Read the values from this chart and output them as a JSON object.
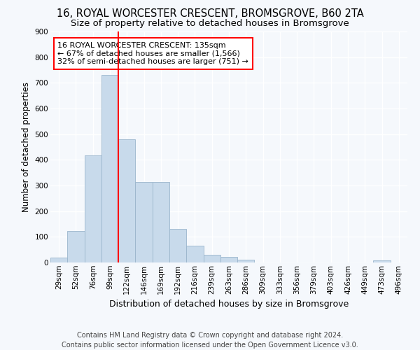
{
  "title_line1": "16, ROYAL WORCESTER CRESCENT, BROMSGROVE, B60 2TA",
  "title_line2": "Size of property relative to detached houses in Bromsgrove",
  "xlabel": "Distribution of detached houses by size in Bromsgrove",
  "ylabel": "Number of detached properties",
  "categories": [
    "29sqm",
    "52sqm",
    "76sqm",
    "99sqm",
    "122sqm",
    "146sqm",
    "169sqm",
    "192sqm",
    "216sqm",
    "239sqm",
    "263sqm",
    "286sqm",
    "309sqm",
    "333sqm",
    "356sqm",
    "379sqm",
    "403sqm",
    "426sqm",
    "449sqm",
    "473sqm",
    "496sqm"
  ],
  "values": [
    20,
    122,
    418,
    730,
    480,
    315,
    315,
    130,
    65,
    30,
    22,
    10,
    0,
    0,
    0,
    0,
    0,
    0,
    0,
    8,
    0
  ],
  "bar_color": "#c8daeb",
  "bar_edge_color": "#9ab5cc",
  "vline_x": 3.5,
  "vline_color": "red",
  "vline_linewidth": 1.5,
  "ylim": [
    0,
    900
  ],
  "yticks": [
    0,
    100,
    200,
    300,
    400,
    500,
    600,
    700,
    800,
    900
  ],
  "annotation_text": "16 ROYAL WORCESTER CRESCENT: 135sqm\n← 67% of detached houses are smaller (1,566)\n32% of semi-detached houses are larger (751) →",
  "annotation_box_color": "white",
  "annotation_box_edgecolor": "red",
  "footer_line1": "Contains HM Land Registry data © Crown copyright and database right 2024.",
  "footer_line2": "Contains public sector information licensed under the Open Government Licence v3.0.",
  "bg_color": "#f5f8fc",
  "grid_color": "white",
  "title_fontsize": 10.5,
  "subtitle_fontsize": 9.5,
  "ylabel_fontsize": 8.5,
  "xlabel_fontsize": 9,
  "annotation_fontsize": 8,
  "footer_fontsize": 7,
  "tick_fontsize": 7.5
}
